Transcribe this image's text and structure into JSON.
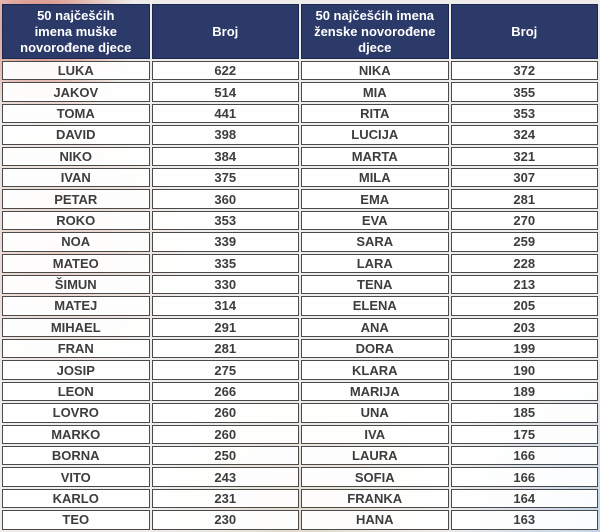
{
  "header": {
    "male_names_label": "50 najčešćih\nimena muške\nnovorođene djece",
    "male_count_label": "Broj",
    "female_names_label": "50 najčešćih imena\nženske novorođene\ndjece",
    "female_count_label": "Broj"
  },
  "colors": {
    "header_bg": "#2c3a6a",
    "header_text": "#ffffff",
    "cell_border": "#4a4a4a",
    "cell_text": "#3d3d3d",
    "background_tint_topleft": "#d26e5f",
    "background_tint_bottomright": "#a5c3eb"
  },
  "chart_data": {
    "type": "table",
    "columns": [
      "50 najčešćih imena muške novorođene djece",
      "Broj",
      "50 najčešćih imena ženske novorođene djece",
      "Broj"
    ],
    "rows": [
      [
        "LUKA",
        622,
        "NIKA",
        372
      ],
      [
        "JAKOV",
        514,
        "MIA",
        355
      ],
      [
        "TOMA",
        441,
        "RITA",
        353
      ],
      [
        "DAVID",
        398,
        "LUCIJA",
        324
      ],
      [
        "NIKO",
        384,
        "MARTA",
        321
      ],
      [
        "IVAN",
        375,
        "MILA",
        307
      ],
      [
        "PETAR",
        360,
        "EMA",
        281
      ],
      [
        "ROKO",
        353,
        "EVA",
        270
      ],
      [
        "NOA",
        339,
        "SARA",
        259
      ],
      [
        "MATEO",
        335,
        "LARA",
        228
      ],
      [
        "ŠIMUN",
        330,
        "TENA",
        213
      ],
      [
        "MATEJ",
        314,
        "ELENA",
        205
      ],
      [
        "MIHAEL",
        291,
        "ANA",
        203
      ],
      [
        "FRAN",
        281,
        "DORA",
        199
      ],
      [
        "JOSIP",
        275,
        "KLARA",
        190
      ],
      [
        "LEON",
        266,
        "MARIJA",
        189
      ],
      [
        "LOVRO",
        260,
        "UNA",
        185
      ],
      [
        "MARKO",
        260,
        "IVA",
        175
      ],
      [
        "BORNA",
        250,
        "LAURA",
        166
      ],
      [
        "VITO",
        243,
        "SOFIA",
        166
      ],
      [
        "KARLO",
        231,
        "FRANKA",
        164
      ],
      [
        "TEO",
        230,
        "HANA",
        163
      ]
    ]
  }
}
